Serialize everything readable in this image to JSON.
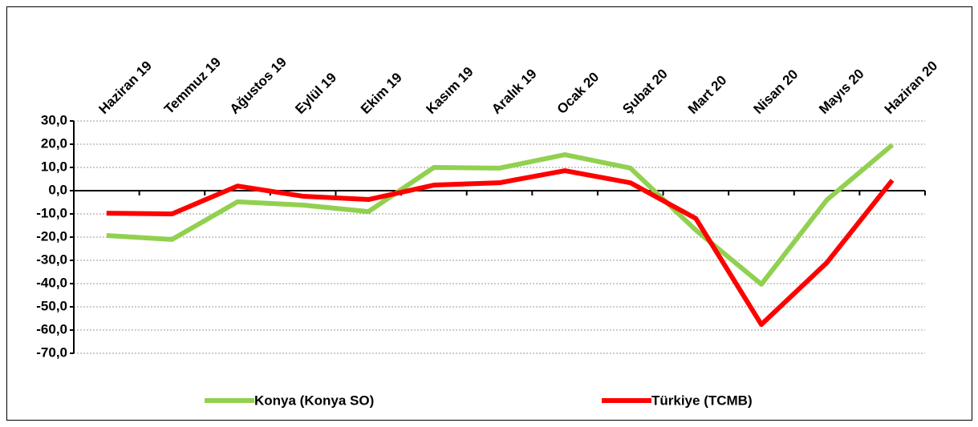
{
  "chart_data": {
    "type": "line",
    "categories": [
      "Haziran 19",
      "Temmuz 19",
      "Ağustos 19",
      "Eylül 19",
      "Ekim 19",
      "Kasım 19",
      "Aralık 19",
      "Ocak 20",
      "Şubat 20",
      "Mart 20",
      "Nisan 20",
      "Mayıs 20",
      "Haziran 20"
    ],
    "series": [
      {
        "name": "Konya (Konya SO)",
        "color": "#92d050",
        "values": [
          -19.3,
          -21,
          -4.8,
          -6.2,
          -9,
          10,
          9.7,
          15.5,
          9.7,
          -17,
          -40.3,
          -4,
          19.7
        ]
      },
      {
        "name": "Türkiye (TCMB)",
        "color": "#ff0000",
        "values": [
          -9.7,
          -10,
          2,
          -2.4,
          -3.8,
          2.4,
          3.4,
          8.6,
          3.4,
          -12,
          -57.6,
          -31,
          4.5
        ]
      }
    ],
    "ylim": [
      -70,
      30
    ],
    "yticks": [
      {
        "value": -70,
        "label": "-70,0"
      },
      {
        "value": -60,
        "label": "-60,0"
      },
      {
        "value": -50,
        "label": "-50,0"
      },
      {
        "value": -40,
        "label": "-40,0"
      },
      {
        "value": -30,
        "label": "-30,0"
      },
      {
        "value": -20,
        "label": "-20,0"
      },
      {
        "value": -10,
        "label": "-10,0"
      },
      {
        "value": 0,
        "label": "0,0"
      },
      {
        "value": 10,
        "label": "10,0"
      },
      {
        "value": 20,
        "label": "20,0"
      },
      {
        "value": 30,
        "label": "30,0"
      }
    ],
    "grid": true,
    "legend": "bottom"
  }
}
